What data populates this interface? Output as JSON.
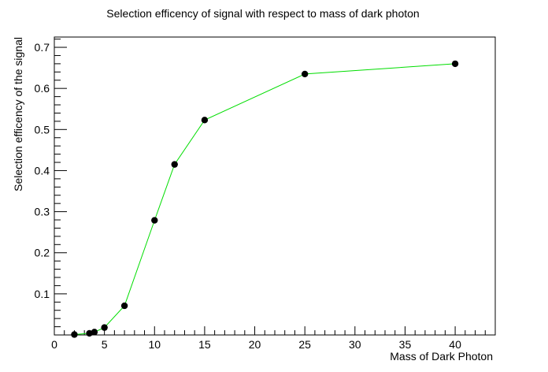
{
  "chart_data": {
    "type": "line",
    "title": "Selection efficency of signal with respect to mass of dark photon",
    "xlabel": "Mass of Dark Photon",
    "ylabel": "Selection efficency of the signal",
    "xlim": [
      0,
      44
    ],
    "ylim": [
      0,
      0.725
    ],
    "xticks": [
      "0",
      "5",
      "10",
      "15",
      "20",
      "25",
      "30",
      "35",
      "40"
    ],
    "yticks": [
      "0.1",
      "0.2",
      "0.3",
      "0.4",
      "0.5",
      "0.6",
      "0.7"
    ],
    "grid": false,
    "line_color": "#00dd00",
    "marker_color": "#000000",
    "series": [
      {
        "x": [
          2,
          3.5,
          4,
          5,
          7,
          10,
          12,
          15,
          25,
          40
        ],
        "y": [
          0.001,
          0.004,
          0.007,
          0.018,
          0.071,
          0.279,
          0.415,
          0.523,
          0.635,
          0.66
        ]
      }
    ]
  }
}
